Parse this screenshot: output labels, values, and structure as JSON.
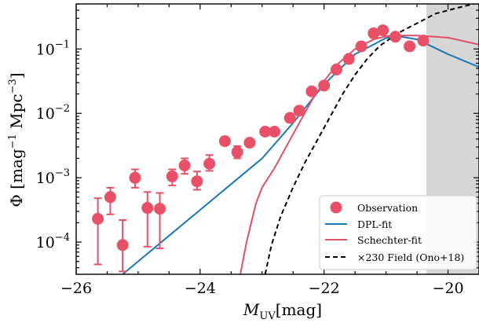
{
  "chart_data": {
    "type": "scatter",
    "xlabel_main": "M",
    "xlabel_sub": "UV",
    "xlabel_unit": "[mag]",
    "ylabel_symbol": "Φ",
    "ylabel_unit_parts": [
      "[mag",
      "−1",
      " Mpc",
      "−3",
      "]"
    ],
    "xlim": [
      -26,
      -19.5
    ],
    "ylim_log10": [
      -4.5,
      -0.3
    ],
    "x_scale": "linear",
    "y_scale": "log",
    "x_ticks": [
      -26,
      -24,
      -22,
      -20
    ],
    "x_tick_labels": [
      "−26",
      "−24",
      "−22",
      "−20"
    ],
    "y_ticks_exp": [
      -4,
      -3,
      -2,
      -1
    ],
    "y_tick_base": "10",
    "y_tick_exp_labels": [
      "−4",
      "−3",
      "−2",
      "−1"
    ],
    "shaded_region_x": [
      -20.35,
      -19.5
    ],
    "legend_position": "lower-right",
    "observation": {
      "name": "Observation",
      "color": "#e85068",
      "points": [
        {
          "x": -25.65,
          "y": 0.00023,
          "ylo": 4.5e-05,
          "yhi": 0.00048
        },
        {
          "x": -25.45,
          "y": 0.0005,
          "ylo": 0.00027,
          "yhi": 0.0007
        },
        {
          "x": -25.25,
          "y": 9e-05,
          "ylo": 3.5e-05,
          "yhi": 0.00022
        },
        {
          "x": -25.05,
          "y": 0.001,
          "ylo": 0.0007,
          "yhi": 0.00135
        },
        {
          "x": -24.85,
          "y": 0.00034,
          "ylo": 8.5e-05,
          "yhi": 0.0006
        },
        {
          "x": -24.65,
          "y": 0.00033,
          "ylo": 8e-05,
          "yhi": 0.00058
        },
        {
          "x": -24.45,
          "y": 0.00105,
          "ylo": 0.00076,
          "yhi": 0.00135
        },
        {
          "x": -24.25,
          "y": 0.00155,
          "ylo": 0.00115,
          "yhi": 0.002
        },
        {
          "x": -24.05,
          "y": 0.00088,
          "ylo": 0.00065,
          "yhi": 0.00125
        },
        {
          "x": -23.85,
          "y": 0.00165,
          "ylo": 0.00128,
          "yhi": 0.00225
        },
        {
          "x": -23.6,
          "y": 0.0037,
          "ylo": 0.0032,
          "yhi": 0.0043
        },
        {
          "x": -23.4,
          "y": 0.0025,
          "ylo": 0.002,
          "yhi": 0.0031
        },
        {
          "x": -23.2,
          "y": 0.0035,
          "ylo": 0.0031,
          "yhi": 0.004
        },
        {
          "x": -22.95,
          "y": 0.0052,
          "ylo": 0.0048,
          "yhi": 0.0057
        },
        {
          "x": -22.8,
          "y": 0.0052,
          "ylo": 0.0048,
          "yhi": 0.0057
        },
        {
          "x": -22.55,
          "y": 0.0085,
          "ylo": 0.0078,
          "yhi": 0.0092
        },
        {
          "x": -22.4,
          "y": 0.011,
          "ylo": 0.0102,
          "yhi": 0.0118
        },
        {
          "x": -22.2,
          "y": 0.022,
          "ylo": 0.02,
          "yhi": 0.024
        },
        {
          "x": -22.0,
          "y": 0.027,
          "ylo": 0.025,
          "yhi": 0.029
        },
        {
          "x": -21.8,
          "y": 0.048,
          "ylo": 0.045,
          "yhi": 0.052
        },
        {
          "x": -21.6,
          "y": 0.07,
          "ylo": 0.065,
          "yhi": 0.075
        },
        {
          "x": -21.4,
          "y": 0.11,
          "ylo": 0.102,
          "yhi": 0.118
        },
        {
          "x": -21.2,
          "y": 0.175,
          "ylo": 0.165,
          "yhi": 0.185
        },
        {
          "x": -21.05,
          "y": 0.195,
          "ylo": 0.183,
          "yhi": 0.207
        },
        {
          "x": -20.85,
          "y": 0.155,
          "ylo": 0.145,
          "yhi": 0.165
        },
        {
          "x": -20.62,
          "y": 0.11,
          "ylo": 0.1,
          "yhi": 0.12
        },
        {
          "x": -20.4,
          "y": 0.135,
          "ylo": 0.125,
          "yhi": 0.145
        }
      ]
    },
    "curves": [
      {
        "name": "DPL-fit",
        "color": "#1a78b8",
        "dash": "none",
        "points": [
          [
            -25.25,
            3.16e-05
          ],
          [
            -25.0,
            5.01e-05
          ],
          [
            -24.5,
            0.000126
          ],
          [
            -24.0,
            0.000316
          ],
          [
            -23.5,
            0.000794
          ],
          [
            -23.0,
            0.002
          ],
          [
            -22.5,
            0.00708
          ],
          [
            -22.0,
            0.0282
          ],
          [
            -21.5,
            0.0832
          ],
          [
            -21.0,
            0.148
          ],
          [
            -20.8,
            0.158
          ],
          [
            -20.5,
            0.141
          ],
          [
            -20.0,
            0.0832
          ],
          [
            -19.5,
            0.0525
          ]
        ]
      },
      {
        "name": "Schechter-fit",
        "color": "#e0506a",
        "dash": "none",
        "points": [
          [
            -23.35,
            3.16e-05
          ],
          [
            -23.25,
            0.0001
          ],
          [
            -23.1,
            0.000398
          ],
          [
            -23.0,
            0.000708
          ],
          [
            -22.8,
            0.00141
          ],
          [
            -22.6,
            0.00316
          ],
          [
            -22.4,
            0.00708
          ],
          [
            -22.2,
            0.0158
          ],
          [
            -22.0,
            0.0316
          ],
          [
            -21.8,
            0.0562
          ],
          [
            -21.5,
            0.1
          ],
          [
            -21.2,
            0.141
          ],
          [
            -21.0,
            0.158
          ],
          [
            -20.8,
            0.162
          ],
          [
            -20.5,
            0.162
          ],
          [
            -20.0,
            0.15
          ],
          [
            -19.5,
            0.117
          ]
        ]
      },
      {
        "name": "×230 Field (Ono+18)",
        "color": "#000000",
        "dash": "6,4",
        "points": [
          [
            -22.95,
            3.16e-05
          ],
          [
            -22.85,
            8.91e-05
          ],
          [
            -22.7,
            0.000251
          ],
          [
            -22.5,
            0.000708
          ],
          [
            -22.3,
            0.00178
          ],
          [
            -22.1,
            0.00398
          ],
          [
            -21.9,
            0.00891
          ],
          [
            -21.7,
            0.02
          ],
          [
            -21.5,
            0.0398
          ],
          [
            -21.3,
            0.0708
          ],
          [
            -21.1,
            0.112
          ],
          [
            -20.8,
            0.178
          ],
          [
            -20.5,
            0.251
          ],
          [
            -20.2,
            0.355
          ],
          [
            -19.8,
            0.447
          ],
          [
            -19.5,
            0.525
          ]
        ]
      }
    ],
    "legend_entries": [
      "Observation",
      "DPL-fit",
      "Schechter-fit",
      "×230 Field (Ono+18)"
    ]
  }
}
